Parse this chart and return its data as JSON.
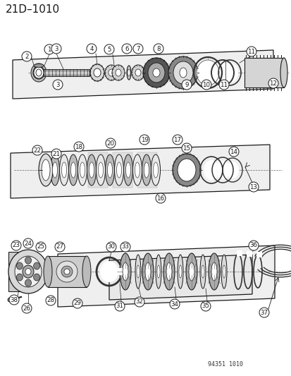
{
  "title": "21D–1010",
  "catalog_number": "94351 1010",
  "bg_color": "#ffffff",
  "line_color": "#1a1a1a",
  "fig_width": 4.14,
  "fig_height": 5.33,
  "dpi": 100
}
